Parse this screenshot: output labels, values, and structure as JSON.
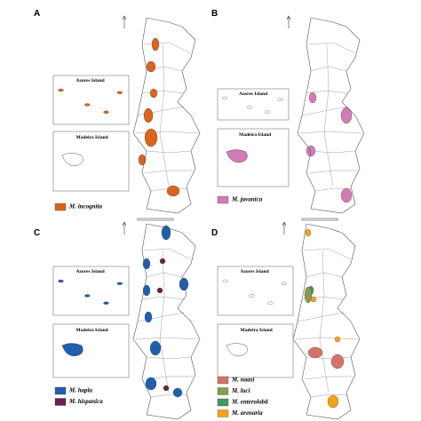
{
  "panels": [
    {
      "letter": "A",
      "azores_label": "Azores Island",
      "madeira_label": "Madeira Island",
      "legend": [
        {
          "name": "M. incognita",
          "color": "#d9651e"
        }
      ]
    },
    {
      "letter": "B",
      "azores_label": "Azores Island",
      "madeira_label": "Madeira Island",
      "legend": [
        {
          "name": "M. javanica",
          "color": "#d27bb4"
        }
      ]
    },
    {
      "letter": "C",
      "azores_label": "Azores Island",
      "madeira_label": "Madeira Island",
      "legend": [
        {
          "name": "M. hapla",
          "color": "#1f5fb0"
        },
        {
          "name": "M. hispanica",
          "color": "#6a1f4f"
        }
      ]
    },
    {
      "letter": "D",
      "azores_label": "Azores Island",
      "madeira_label": "Madeira Island",
      "legend": [
        {
          "name": "M. naasi",
          "color": "#d5736b"
        },
        {
          "name": "M. luci",
          "color": "#8a9a4f"
        },
        {
          "name": "M. enterolobii",
          "color": "#3f9a5c"
        },
        {
          "name": "M. arenaria",
          "color": "#f2a516"
        }
      ]
    }
  ]
}
